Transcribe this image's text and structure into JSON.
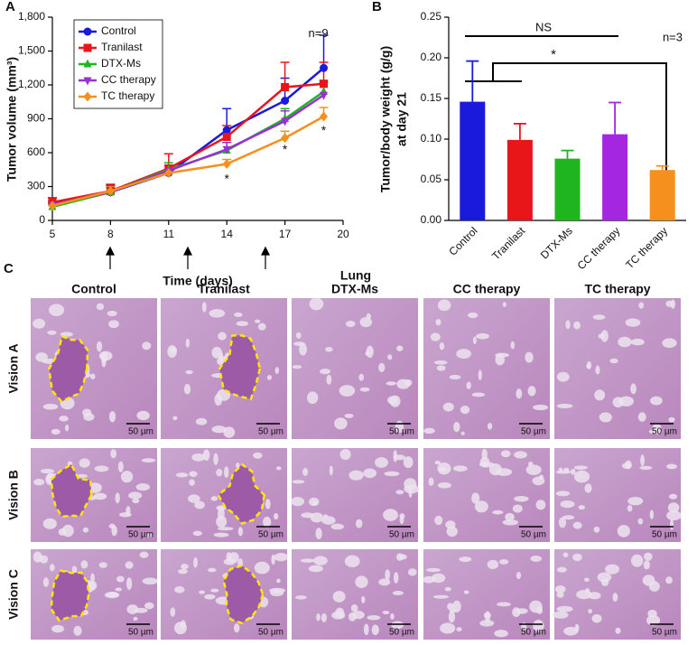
{
  "chart_data": [
    {
      "type": "line",
      "label": "A",
      "xlabel": "Time (days)",
      "ylabel": "Tumor volume (mm³)",
      "x": [
        5,
        8,
        11,
        14,
        17,
        19
      ],
      "xlim": [
        5,
        20
      ],
      "xticks": [
        5,
        8,
        11,
        14,
        17,
        20
      ],
      "ylim": [
        0,
        1800
      ],
      "yticks": [
        0,
        300,
        600,
        900,
        {
          "value": 1200,
          "label": "1,200"
        },
        {
          "value": 1500,
          "label": "1,500"
        },
        {
          "value": 1800,
          "label": "1,800"
        }
      ],
      "legend": "upper left",
      "annotations": [
        "n=9",
        "*",
        "*",
        "*"
      ],
      "series": [
        {
          "name": "Control",
          "color": "#1a1adc",
          "marker": "circle",
          "values": [
            150,
            250,
            420,
            800,
            1060,
            1350
          ],
          "errors": [
            50,
            60,
            30,
            190,
            200,
            290
          ]
        },
        {
          "name": "Tranilast",
          "color": "#e8151b",
          "marker": "square",
          "values": [
            160,
            260,
            460,
            740,
            1180,
            1210
          ],
          "errors": [
            40,
            60,
            130,
            100,
            220,
            190
          ]
        },
        {
          "name": "DTX-Ms",
          "color": "#1fb51f",
          "marker": "triangle",
          "values": [
            120,
            250,
            450,
            620,
            900,
            1140
          ],
          "errors": [
            30,
            40,
            60,
            70,
            90,
            100
          ]
        },
        {
          "name": "CC therapy",
          "color": "#9a2fd6",
          "marker": "down",
          "values": [
            140,
            250,
            440,
            630,
            880,
            1110
          ],
          "errors": [
            30,
            50,
            50,
            60,
            90,
            110
          ]
        },
        {
          "name": "TC therapy",
          "color": "#f5901e",
          "marker": "diamond",
          "values": [
            130,
            260,
            420,
            500,
            730,
            920
          ],
          "errors": [
            30,
            40,
            40,
            40,
            60,
            80
          ]
        }
      ]
    },
    {
      "type": "bar",
      "label": "B",
      "ylabel": [
        "Tumor/body weight (g/g)",
        "at day 21"
      ],
      "categories": [
        "Control",
        "Tranilast",
        "DTX-Ms",
        "CC therapy",
        "TC therapy"
      ],
      "values": [
        0.146,
        0.099,
        0.076,
        0.106,
        0.062
      ],
      "errors": [
        0.05,
        0.02,
        0.01,
        0.039,
        0.005
      ],
      "colors": [
        "#1a1adc",
        "#e8151b",
        "#1fb51f",
        "#a526e0",
        "#f5901e"
      ],
      "ylim": [
        0,
        0.25
      ],
      "yticks": [
        {
          "value": 0,
          "label": "0.00"
        },
        0.05,
        {
          "value": 0.1,
          "label": "0.10"
        },
        0.15,
        {
          "value": 0.2,
          "label": "0.20"
        },
        0.25
      ],
      "annotations": [
        "NS",
        "*",
        "n=3"
      ]
    }
  ],
  "panel_c": {
    "label": "C",
    "title": "Lung",
    "columns": [
      "Control",
      "Tranilast",
      "DTX-Ms",
      "CC therapy",
      "TC therapy"
    ],
    "rows": [
      "Vision A",
      "Vision B",
      "Vision C"
    ],
    "scale_bar": "50 µm"
  }
}
